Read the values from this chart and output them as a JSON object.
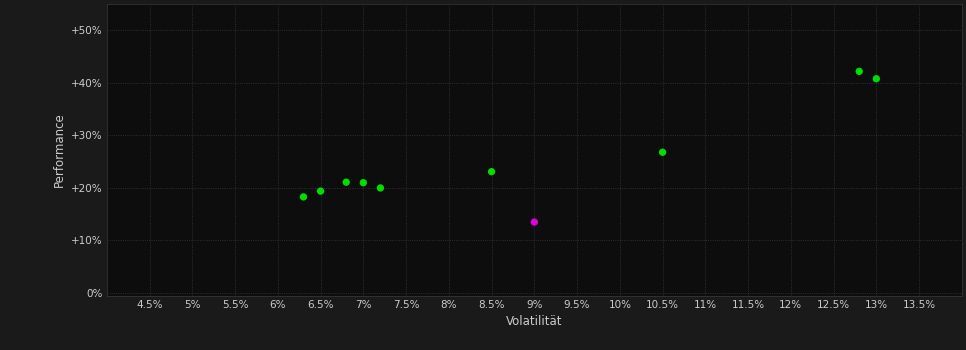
{
  "background_color": "#1a1a1a",
  "plot_bg_color": "#0d0d0d",
  "text_color": "#cccccc",
  "xlabel": "Volatilität",
  "ylabel": "Performance",
  "xlim": [
    0.04,
    0.14
  ],
  "ylim": [
    -0.005,
    0.55
  ],
  "xticks": [
    0.045,
    0.05,
    0.055,
    0.06,
    0.065,
    0.07,
    0.075,
    0.08,
    0.085,
    0.09,
    0.095,
    0.1,
    0.105,
    0.11,
    0.115,
    0.12,
    0.125,
    0.13,
    0.135
  ],
  "xtick_labels": [
    "4.5%",
    "5%",
    "5.5%",
    "6%",
    "6.5%",
    "7%",
    "7.5%",
    "8%",
    "8.5%",
    "9%",
    "9.5%",
    "10%",
    "10.5%",
    "11%",
    "11.5%",
    "12%",
    "12.5%",
    "13%",
    "13.5%"
  ],
  "yticks": [
    0.0,
    0.1,
    0.2,
    0.3,
    0.4,
    0.5
  ],
  "ytick_labels": [
    "0%",
    "+10%",
    "+20%",
    "+30%",
    "+40%",
    "+50%"
  ],
  "green_points": [
    [
      0.063,
      0.183
    ],
    [
      0.065,
      0.194
    ],
    [
      0.068,
      0.211
    ],
    [
      0.07,
      0.21
    ],
    [
      0.072,
      0.2
    ],
    [
      0.085,
      0.231
    ],
    [
      0.105,
      0.268
    ],
    [
      0.128,
      0.422
    ],
    [
      0.13,
      0.408
    ]
  ],
  "magenta_points": [
    [
      0.09,
      0.135
    ]
  ],
  "green_color": "#00dd00",
  "magenta_color": "#dd00dd",
  "marker_size": 28
}
